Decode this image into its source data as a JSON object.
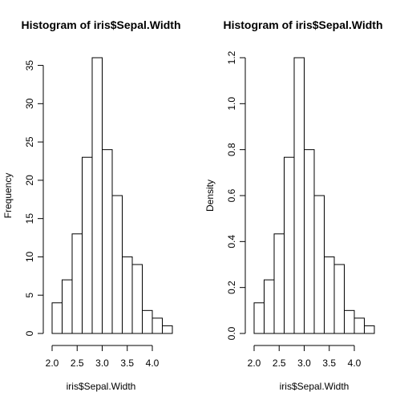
{
  "chart_data": [
    {
      "type": "bar",
      "title": "Histogram of iris$Sepal.Width",
      "xlabel": "iris$Sepal.Width",
      "ylabel": "Frequency",
      "bin_edges": [
        2.0,
        2.2,
        2.4,
        2.6,
        2.8,
        3.0,
        3.2,
        3.4,
        3.6,
        3.8,
        4.0,
        4.2,
        4.4
      ],
      "values": [
        4,
        7,
        13,
        23,
        36,
        24,
        18,
        10,
        9,
        3,
        2,
        1
      ],
      "xlim": [
        2.0,
        4.4
      ],
      "ylim": [
        0,
        36
      ],
      "x_ticks": [
        2.0,
        2.5,
        3.0,
        3.5,
        4.0
      ],
      "x_tick_labels": [
        "2.0",
        "2.5",
        "3.0",
        "3.5",
        "4.0"
      ],
      "y_ticks": [
        0,
        5,
        10,
        15,
        20,
        25,
        30,
        35
      ],
      "y_tick_labels": [
        "0",
        "5",
        "10",
        "15",
        "20",
        "25",
        "30",
        "35"
      ],
      "grid": false
    },
    {
      "type": "bar",
      "title": "Histogram of iris$Sepal.Width",
      "xlabel": "iris$Sepal.Width",
      "ylabel": "Density",
      "bin_edges": [
        2.0,
        2.2,
        2.4,
        2.6,
        2.8,
        3.0,
        3.2,
        3.4,
        3.6,
        3.8,
        4.0,
        4.2,
        4.4
      ],
      "values": [
        0.1333,
        0.2333,
        0.4333,
        0.7667,
        1.2,
        0.8,
        0.6,
        0.3333,
        0.3,
        0.1,
        0.0667,
        0.0333
      ],
      "xlim": [
        2.0,
        4.4
      ],
      "ylim": [
        0,
        1.2
      ],
      "x_ticks": [
        2.0,
        2.5,
        3.0,
        3.5,
        4.0
      ],
      "x_tick_labels": [
        "2.0",
        "2.5",
        "3.0",
        "3.5",
        "4.0"
      ],
      "y_ticks": [
        0,
        0.2,
        0.4,
        0.6,
        0.8,
        1.0,
        1.2
      ],
      "y_tick_labels": [
        "0.0",
        "0.2",
        "0.4",
        "0.6",
        "0.8",
        "1.0",
        "1.2"
      ],
      "grid": false
    }
  ]
}
